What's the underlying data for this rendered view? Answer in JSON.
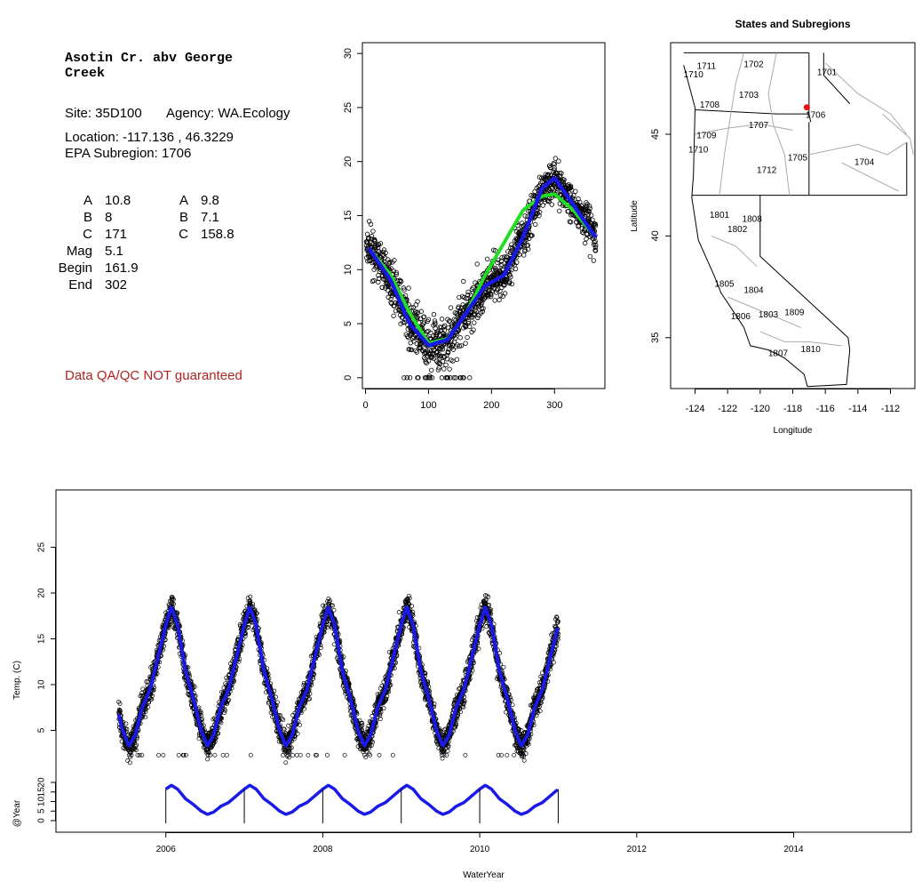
{
  "site": {
    "title": "Asotin Cr. abv George Creek",
    "site_line": "Site: 35D100",
    "agency_line": "Agency: WA.Ecology",
    "location_line": "Location: -117.136 , 46.3229",
    "subregion_line": "EPA Subregion: 1706",
    "params_left": [
      {
        "label": "A",
        "value": "10.8"
      },
      {
        "label": "B",
        "value": "8"
      },
      {
        "label": "C",
        "value": "171"
      },
      {
        "label": "Mag",
        "value": "5.1"
      },
      {
        "label": "Begin",
        "value": "161.9"
      },
      {
        "label": "End",
        "value": "302"
      }
    ],
    "params_right": [
      {
        "label": "A",
        "value": "9.8"
      },
      {
        "label": "B",
        "value": "7.1"
      },
      {
        "label": "C",
        "value": "158.8"
      }
    ],
    "qa_note": "Data QA/QC NOT guaranteed",
    "qa_color": "#b22222"
  },
  "colors": {
    "smooth": "#1a1ae6",
    "fit": "#22dd22",
    "point": "#000000",
    "site_marker": "#ee1111"
  },
  "chart_data": [
    {
      "type": "scatter",
      "x_ticks": [
        0,
        100,
        200,
        300
      ],
      "y_ticks": [
        0,
        5,
        10,
        15,
        20,
        25,
        30
      ],
      "xlim": [
        -5,
        380
      ],
      "ylim": [
        -1,
        31
      ],
      "series": [
        {
          "kind": "points",
          "description": "daily temperature by day of water year"
        },
        {
          "kind": "line",
          "color": "blue"
        },
        {
          "kind": "line",
          "color": "green"
        }
      ],
      "blue_curve": [
        [
          5,
          12
        ],
        [
          40,
          9
        ],
        [
          70,
          5
        ],
        [
          100,
          3
        ],
        [
          130,
          3.5
        ],
        [
          160,
          6
        ],
        [
          190,
          8.5
        ],
        [
          220,
          9.5
        ],
        [
          250,
          13
        ],
        [
          280,
          17.5
        ],
        [
          300,
          18.5
        ],
        [
          330,
          16
        ],
        [
          365,
          13
        ]
      ],
      "green_curve": [
        [
          5,
          12
        ],
        [
          40,
          9.5
        ],
        [
          70,
          6
        ],
        [
          100,
          3.2
        ],
        [
          130,
          3.6
        ],
        [
          160,
          6
        ],
        [
          190,
          9.5
        ],
        [
          220,
          12.5
        ],
        [
          250,
          15.5
        ],
        [
          280,
          16.8
        ],
        [
          300,
          17
        ],
        [
          330,
          15.5
        ],
        [
          365,
          13
        ]
      ]
    },
    {
      "type": "map",
      "title": "States and Subregions",
      "xlabel": "Longitude",
      "ylabel": "Latitude",
      "x_ticks": [
        -124,
        -122,
        -120,
        -118,
        -116,
        -114,
        -112
      ],
      "y_ticks": [
        35,
        40,
        45
      ],
      "xlim": [
        -125.5,
        -110.5
      ],
      "ylim": [
        32.5,
        49.5
      ],
      "site": {
        "lon": -117.136,
        "lat": 46.3229
      },
      "subregions": [
        {
          "id": "1711",
          "lon": -123.3,
          "lat": 48.2
        },
        {
          "id": "1702",
          "lon": -120.4,
          "lat": 48.3
        },
        {
          "id": "1701",
          "lon": -115.9,
          "lat": 47.9
        },
        {
          "id": "1710",
          "lon": -124.1,
          "lat": 47.8
        },
        {
          "id": "1703",
          "lon": -120.7,
          "lat": 46.8
        },
        {
          "id": "1708",
          "lon": -123.1,
          "lat": 46.3
        },
        {
          "id": "1706",
          "lon": -116.6,
          "lat": 45.8
        },
        {
          "id": "1707",
          "lon": -120.1,
          "lat": 45.3
        },
        {
          "id": "1709",
          "lon": -123.3,
          "lat": 44.8
        },
        {
          "id": "1710",
          "lon": -123.8,
          "lat": 44.1
        },
        {
          "id": "1705",
          "lon": -117.7,
          "lat": 43.7
        },
        {
          "id": "1704",
          "lon": -113.6,
          "lat": 43.5
        },
        {
          "id": "1712",
          "lon": -119.6,
          "lat": 43.1
        },
        {
          "id": "1801",
          "lon": -122.5,
          "lat": 40.9
        },
        {
          "id": "1808",
          "lon": -120.5,
          "lat": 40.7
        },
        {
          "id": "1802",
          "lon": -121.4,
          "lat": 40.2
        },
        {
          "id": "1805",
          "lon": -122.2,
          "lat": 37.5
        },
        {
          "id": "1804",
          "lon": -120.4,
          "lat": 37.2
        },
        {
          "id": "1806",
          "lon": -121.2,
          "lat": 35.9
        },
        {
          "id": "1803",
          "lon": -119.5,
          "lat": 36.0
        },
        {
          "id": "1809",
          "lon": -117.9,
          "lat": 36.1
        },
        {
          "id": "1807",
          "lon": -118.9,
          "lat": 34.1
        },
        {
          "id": "1810",
          "lon": -116.9,
          "lat": 34.3
        }
      ]
    },
    {
      "type": "scatter",
      "xlabel": "WaterYear",
      "ylabel_main": "Temp. (C)",
      "ylabel_sub": "@Year",
      "x_ticks": [
        2006,
        2008,
        2010,
        2012,
        2014
      ],
      "y_ticks_main": [
        5,
        10,
        15,
        20,
        25
      ],
      "y_ticks_sub": [
        0,
        5,
        10,
        15,
        20
      ],
      "xlim": [
        2004.6,
        2015.5
      ],
      "ylim_main": [
        0,
        30
      ],
      "series": [
        {
          "kind": "points",
          "description": "daily temperature"
        },
        {
          "kind": "line",
          "color": "blue"
        }
      ],
      "x_range": [
        2005.4,
        2011.0
      ],
      "year_markers": [
        2006,
        2007,
        2008,
        2009,
        2010,
        2011
      ],
      "annual_peaks": [
        18.5,
        18.5,
        18.7,
        18.3,
        18.5,
        18.3
      ],
      "annual_minima": [
        3.2,
        3.3,
        3.3,
        3.2,
        3.2,
        3.3
      ]
    }
  ]
}
